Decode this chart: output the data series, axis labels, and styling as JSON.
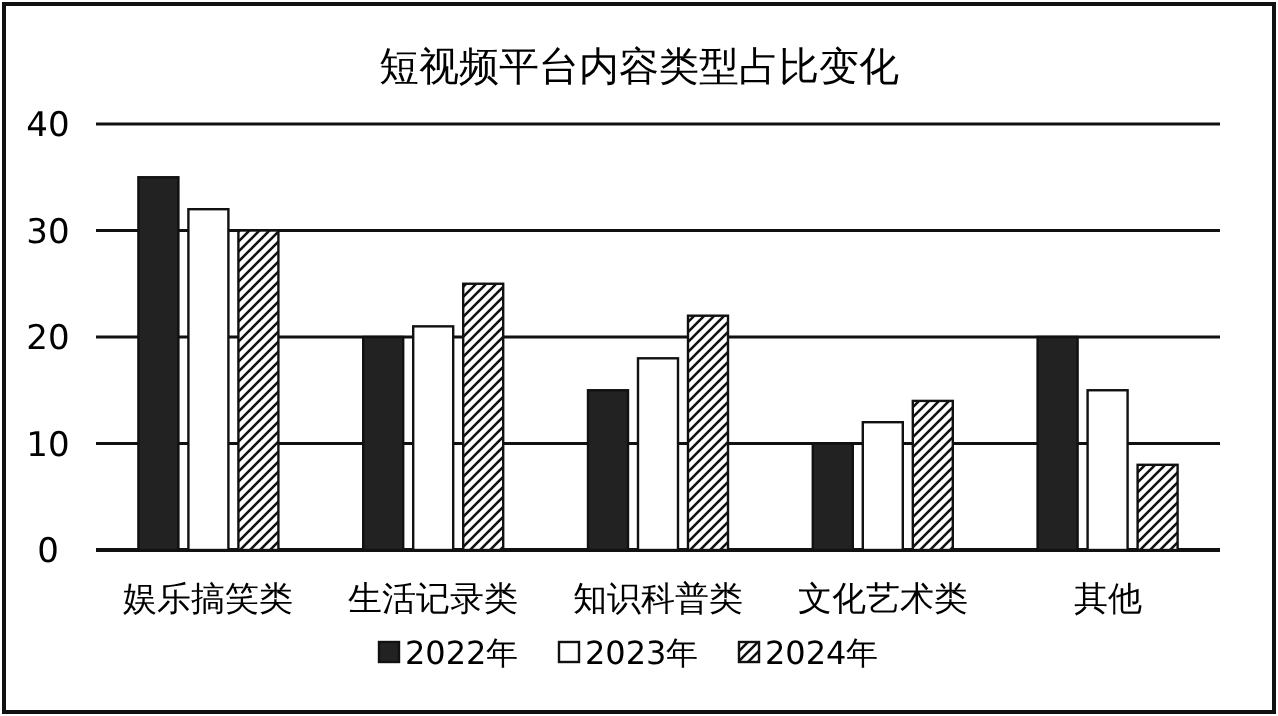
{
  "chart_data": {
    "type": "bar",
    "title": "短视频平台内容类型占比变化",
    "categories": [
      "娱乐搞笑类",
      "生活记录类",
      "知识科普类",
      "文化艺术类",
      "其他"
    ],
    "series": [
      {
        "name": "2022年",
        "color": "#222222",
        "values": [
          35,
          20,
          15,
          10,
          20
        ]
      },
      {
        "name": "2023年",
        "color": "#ffffff",
        "values": [
          32,
          21,
          18,
          12,
          15
        ]
      },
      {
        "name": "2024年",
        "color": "#111111",
        "values": [
          30,
          25,
          22,
          14,
          8
        ]
      }
    ],
    "ylim": [
      0,
      40
    ],
    "yticks": [
      0,
      10,
      20,
      30,
      40
    ],
    "grid": "y",
    "legend": "bottom"
  }
}
